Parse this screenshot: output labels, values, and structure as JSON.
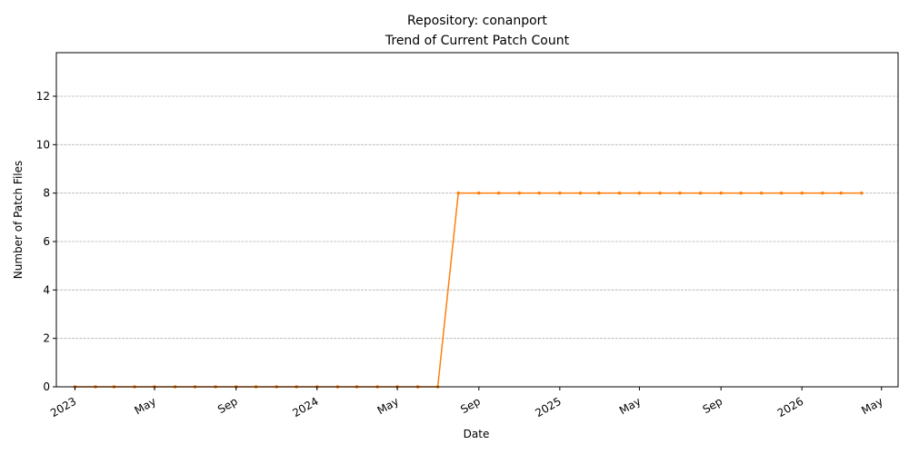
{
  "chart_data": {
    "type": "line",
    "title": "Repository: conanport",
    "subtitle": "Trend of Current Patch Count",
    "xlabel": "Date",
    "ylabel": "Number of Patch Files",
    "xlim": [
      "2022-12-04",
      "2026-05-26"
    ],
    "ylim": [
      0,
      13.8
    ],
    "y_ticks": [
      0,
      2,
      4,
      6,
      8,
      10,
      12
    ],
    "x_ticks": [
      {
        "date": "2023-01-01",
        "label": "2023"
      },
      {
        "date": "2023-05-01",
        "label": "May"
      },
      {
        "date": "2023-09-01",
        "label": "Sep"
      },
      {
        "date": "2024-01-01",
        "label": "2024"
      },
      {
        "date": "2024-05-01",
        "label": "May"
      },
      {
        "date": "2024-09-01",
        "label": "Sep"
      },
      {
        "date": "2025-01-01",
        "label": "2025"
      },
      {
        "date": "2025-05-01",
        "label": "May"
      },
      {
        "date": "2025-09-01",
        "label": "Sep"
      },
      {
        "date": "2026-01-01",
        "label": "2026"
      },
      {
        "date": "2026-05-01",
        "label": "May"
      }
    ],
    "grid": "horizontal",
    "line_color": "#ff7f0e",
    "series": [
      {
        "x": [
          "2023-01-01",
          "2023-02-01",
          "2023-03-01",
          "2023-04-01",
          "2023-05-01",
          "2023-06-01",
          "2023-07-01",
          "2023-08-01",
          "2023-09-01",
          "2023-10-01",
          "2023-11-01",
          "2023-12-01",
          "2024-01-01",
          "2024-02-01",
          "2024-03-01",
          "2024-04-01",
          "2024-05-01",
          "2024-06-01",
          "2024-07-01",
          "2024-08-01",
          "2024-09-01",
          "2024-10-01",
          "2024-11-01",
          "2024-12-01",
          "2025-01-01",
          "2025-02-01",
          "2025-03-01",
          "2025-04-01",
          "2025-05-01",
          "2025-06-01",
          "2025-07-01",
          "2025-08-01",
          "2025-09-01",
          "2025-10-01",
          "2025-11-01",
          "2025-12-01",
          "2026-01-01",
          "2026-02-01",
          "2026-03-01",
          "2026-04-01"
        ],
        "values": [
          0,
          0,
          0,
          0,
          0,
          0,
          0,
          0,
          0,
          0,
          0,
          0,
          0,
          0,
          0,
          0,
          0,
          0,
          0,
          8,
          8,
          8,
          8,
          8,
          8,
          8,
          8,
          8,
          8,
          8,
          8,
          8,
          8,
          8,
          8,
          8,
          8,
          8,
          8,
          8
        ]
      }
    ]
  }
}
